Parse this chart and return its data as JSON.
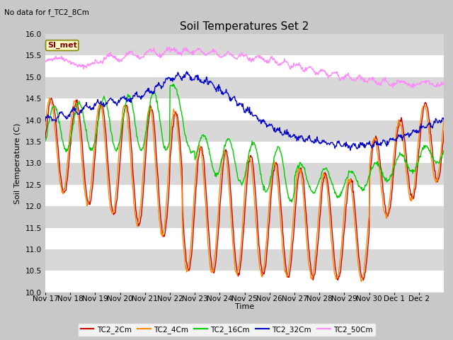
{
  "title": "Soil Temperatures Set 2",
  "subtitle": "No data for f_TC2_8Cm",
  "xlabel": "Time",
  "ylabel": "Soil Temperature (C)",
  "ylim": [
    10.0,
    16.0
  ],
  "yticks": [
    10.0,
    10.5,
    11.0,
    11.5,
    12.0,
    12.5,
    13.0,
    13.5,
    14.0,
    14.5,
    15.0,
    15.5,
    16.0
  ],
  "xtick_labels": [
    "Nov 17",
    "Nov 18",
    "Nov 19",
    "Nov 20",
    "Nov 21",
    "Nov 22",
    "Nov 23",
    "Nov 24",
    "Nov 25",
    "Nov 26",
    "Nov 27",
    "Nov 28",
    "Nov 29",
    "Nov 30",
    "Dec 1",
    "Dec 2"
  ],
  "series": {
    "TC2_2Cm": {
      "color": "#cc0000",
      "lw": 1.0
    },
    "TC2_4Cm": {
      "color": "#ff8800",
      "lw": 1.0
    },
    "TC2_16Cm": {
      "color": "#00cc00",
      "lw": 1.0
    },
    "TC2_32Cm": {
      "color": "#0000cc",
      "lw": 1.0
    },
    "TC2_50Cm": {
      "color": "#ff88ff",
      "lw": 1.0
    }
  },
  "legend_label": "SI_met",
  "legend_bg": "#ffffcc",
  "legend_border": "#888800",
  "fig_bg": "#c8c8c8",
  "plot_bg": "#e8e8e8",
  "alt_band_color": "#d8d8d8",
  "grid_color": "#ffffff",
  "title_fontsize": 11,
  "axis_fontsize": 8,
  "tick_fontsize": 7.5
}
